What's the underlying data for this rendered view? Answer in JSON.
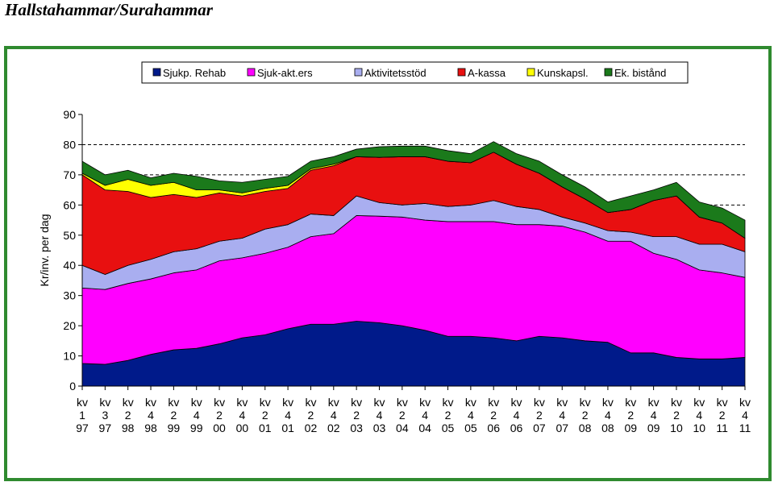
{
  "page_title": "Hallstahammar/Surahammar",
  "chart_data": {
    "type": "area",
    "stacked": true,
    "ylabel": "Kr/inv. per dag",
    "ylim": [
      0,
      90
    ],
    "yticks": [
      0,
      10,
      20,
      30,
      40,
      50,
      60,
      70,
      80,
      90
    ],
    "grid": "dashed horizontal at 60, 70, 80",
    "legend_position": "top",
    "x_tick_labels": [
      [
        "kv",
        "1",
        "97"
      ],
      [
        "kv",
        "3",
        "97"
      ],
      [
        "kv",
        "2",
        "98"
      ],
      [
        "kv",
        "4",
        "98"
      ],
      [
        "kv",
        "2",
        "99"
      ],
      [
        "kv",
        "4",
        "99"
      ],
      [
        "kv",
        "2",
        "00"
      ],
      [
        "kv",
        "4",
        "00"
      ],
      [
        "kv",
        "2",
        "01"
      ],
      [
        "kv",
        "4",
        "01"
      ],
      [
        "kv",
        "2",
        "02"
      ],
      [
        "kv",
        "4",
        "02"
      ],
      [
        "kv",
        "2",
        "03"
      ],
      [
        "kv",
        "4",
        "03"
      ],
      [
        "kv",
        "2",
        "04"
      ],
      [
        "kv",
        "4",
        "04"
      ],
      [
        "kv",
        "2",
        "05"
      ],
      [
        "kv",
        "4",
        "05"
      ],
      [
        "kv",
        "2",
        "06"
      ],
      [
        "kv",
        "4",
        "06"
      ],
      [
        "kv",
        "2",
        "07"
      ],
      [
        "kv",
        "4",
        "07"
      ],
      [
        "kv",
        "2",
        "08"
      ],
      [
        "kv",
        "4",
        "08"
      ],
      [
        "kv",
        "2",
        "09"
      ],
      [
        "kv",
        "4",
        "09"
      ],
      [
        "kv",
        "2",
        "10"
      ],
      [
        "kv",
        "4",
        "10"
      ],
      [
        "kv",
        "2",
        "11"
      ],
      [
        "kv",
        "4",
        "11"
      ]
    ],
    "series": [
      {
        "name": "Sjukp. Rehab",
        "color": "#001a8a",
        "values": [
          7.5,
          7.2,
          8.5,
          10.5,
          12,
          12.5,
          14,
          16,
          17,
          19,
          20.5,
          20.5,
          21.5,
          21,
          20,
          18.5,
          16.5,
          16.5,
          16,
          15,
          16.5,
          16,
          15,
          14.5,
          11,
          11,
          9.5,
          9,
          9,
          9.5
        ]
      },
      {
        "name": "Sjuk-akt.ers",
        "color": "#ff00ff",
        "values": [
          25,
          24.8,
          25.5,
          25,
          25.5,
          26,
          27.5,
          26.5,
          27,
          27,
          29,
          30,
          35,
          35.3,
          36,
          36.5,
          38,
          38,
          38.5,
          38.5,
          37,
          37,
          36,
          33.5,
          37,
          33,
          32.5,
          29.5,
          28.5,
          26.5
        ]
      },
      {
        "name": "Aktivitetsstöd",
        "color": "#a9aef0",
        "values": [
          7.5,
          5,
          6,
          6.5,
          7,
          7,
          6.5,
          6.5,
          8,
          7.5,
          7.5,
          6,
          6.5,
          4.5,
          4,
          5.5,
          5,
          5.5,
          7,
          6,
          5,
          3,
          3,
          3.5,
          3,
          5.5,
          7.5,
          8.5,
          9.5,
          8.5
        ]
      },
      {
        "name": "A-kassa",
        "color": "#e81010",
        "values": [
          30,
          28,
          24.5,
          20.5,
          19,
          17,
          16,
          14,
          12.5,
          12,
          14.5,
          16.5,
          13,
          15,
          16,
          15.5,
          15,
          14,
          16,
          14,
          12,
          10,
          8,
          6,
          7.5,
          12,
          13.5,
          9,
          7,
          4.5
        ]
      },
      {
        "name": "Kunskapsl.",
        "color": "#ffff00",
        "values": [
          0.5,
          1.5,
          4,
          4,
          4,
          2.5,
          1,
          1,
          1,
          1,
          0.5,
          0.5,
          0,
          0,
          0,
          0,
          0,
          0,
          0,
          0,
          0,
          0,
          0,
          0,
          0,
          0,
          0,
          0,
          0,
          0
        ]
      },
      {
        "name": "Ek. bistånd",
        "color": "#1b7a1b",
        "values": [
          4,
          3.5,
          3,
          2.5,
          3,
          4.5,
          3,
          3.5,
          3,
          3,
          2.5,
          2.5,
          2.5,
          3.5,
          3.5,
          3.5,
          3.5,
          3,
          3.5,
          3.5,
          4,
          4,
          4,
          3.5,
          4.5,
          3.5,
          4.5,
          5,
          5,
          6
        ]
      }
    ]
  }
}
